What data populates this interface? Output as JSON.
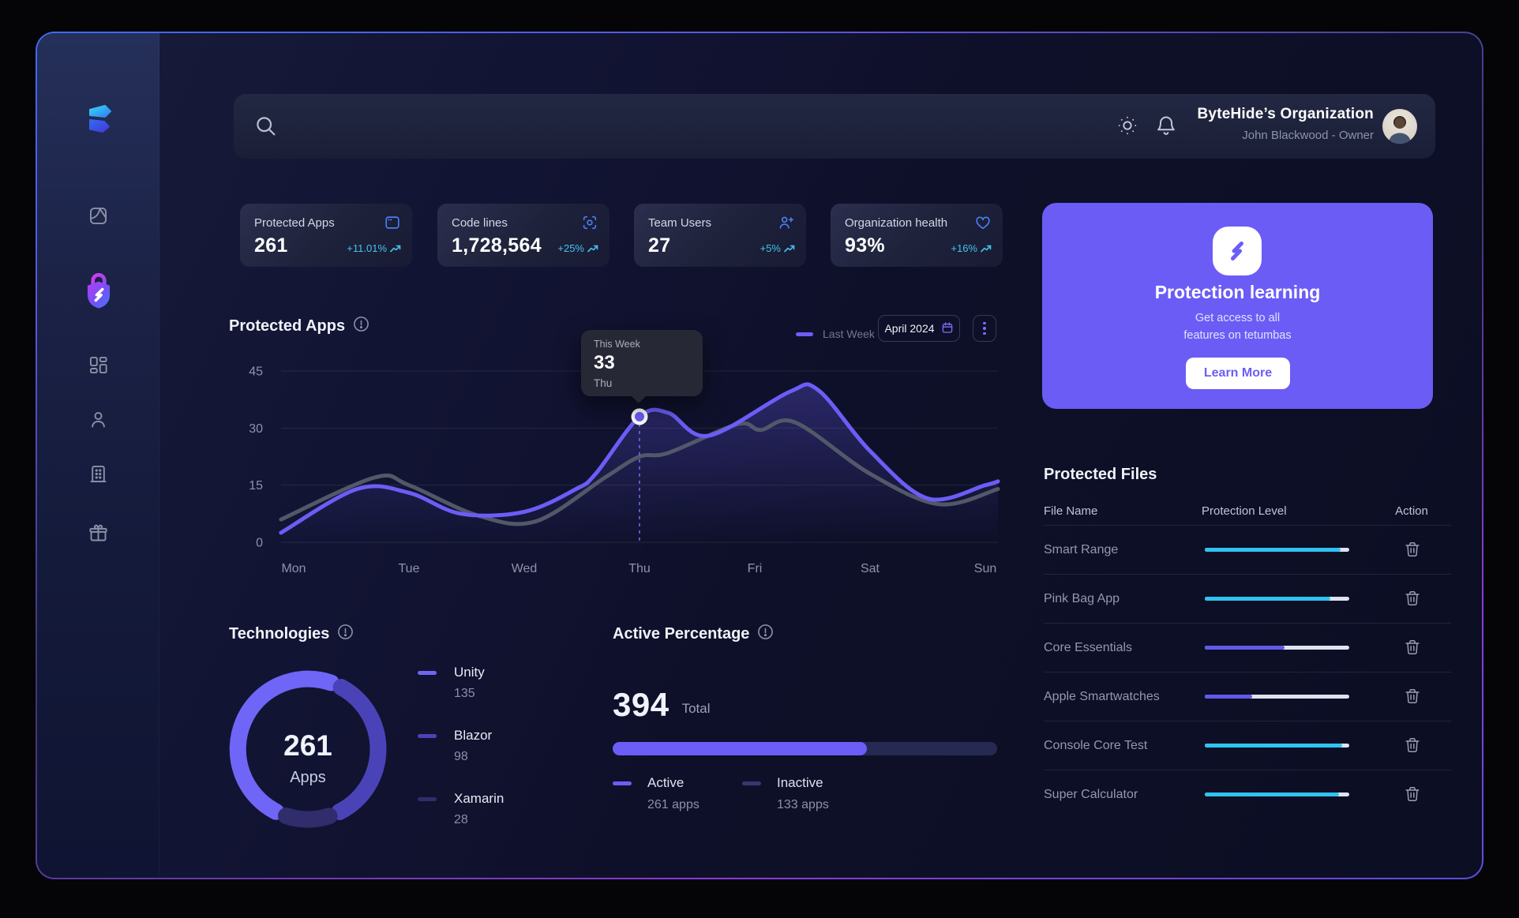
{
  "header": {
    "org_name": "ByteHide’s Organization",
    "org_role": "John Blackwood - Owner",
    "search_placeholder": ""
  },
  "sidebar": {
    "items": [
      "reader",
      "shield",
      "dashboard",
      "user",
      "organization",
      "rewards"
    ]
  },
  "stats": [
    {
      "label": "Protected Apps",
      "value": "261",
      "change": "+11.01%",
      "icon": "app-window-icon"
    },
    {
      "label": "Code lines",
      "value": "1,728,564",
      "change": "+25%",
      "icon": "code-scan-icon"
    },
    {
      "label": "Team Users",
      "value": "27",
      "change": "+5%",
      "icon": "user-plus-icon"
    },
    {
      "label": "Organization health",
      "value": "93%",
      "change": "+16%",
      "icon": "heart-icon"
    }
  ],
  "chart": {
    "title": "Protected Apps",
    "legend_label": "Last Week",
    "period": "April 2024",
    "tooltip": {
      "label": "This Week",
      "value": "33",
      "day": "Thu"
    }
  },
  "promo": {
    "title": "Protection learning",
    "subtitle_line1": "Get access to all",
    "subtitle_line2": "features on tetumbas",
    "button": "Learn More"
  },
  "files": {
    "title": "Protected Files",
    "headers": [
      "File Name",
      "Protection Level",
      "Action"
    ],
    "rows": [
      {
        "name": "Smart Range",
        "level": 94,
        "color": "#2fc3f2"
      },
      {
        "name": "Pink Bag App",
        "level": 87,
        "color": "#2fc3f2"
      },
      {
        "name": "Core Essentials",
        "level": 55,
        "color": "#6159e8"
      },
      {
        "name": "Apple Smartwatches",
        "level": 33,
        "color": "#6159e8"
      },
      {
        "name": "Console Core Test",
        "level": 95,
        "color": "#2fc3f2"
      },
      {
        "name": "Super Calculator",
        "level": 93,
        "color": "#2fc3f2"
      }
    ]
  },
  "technologies": {
    "title": "Technologies",
    "center_value": "261",
    "center_label": "Apps",
    "items": [
      {
        "name": "Unity",
        "value": 135,
        "color": "#6F66F7"
      },
      {
        "name": "Blazor",
        "value": 98,
        "color": "#4A43B8"
      },
      {
        "name": "Xamarin",
        "value": 28,
        "color": "#312C6B"
      }
    ]
  },
  "active": {
    "title": "Active Percentage",
    "total": "394",
    "total_label": "Total",
    "active_count": 261,
    "total_count": 394,
    "legend": [
      {
        "label": "Active",
        "value": "261 apps",
        "color": "#6C5DF6"
      },
      {
        "label": "Inactive",
        "value": "133 apps",
        "color": "#343a6e"
      }
    ]
  },
  "chart_data": [
    {
      "type": "line",
      "title": "Protected Apps",
      "x": [
        "Mon",
        "Tue",
        "Wed",
        "Thu",
        "Fri",
        "Sat",
        "Sun"
      ],
      "ylim": [
        0,
        45
      ],
      "y_ticks": [
        45,
        30,
        15,
        0
      ],
      "grid": true,
      "legend_position": "top-right",
      "series": [
        {
          "name": "Last Week",
          "color": "#535869",
          "values_by_day": [
            6,
            15,
            6,
            23,
            30,
            18,
            13
          ],
          "anchors": [
            [
              -0.11,
              6
            ],
            [
              0.7,
              17
            ],
            [
              1,
              15
            ],
            [
              1.6,
              7
            ],
            [
              2.1,
              5.5
            ],
            [
              2.7,
              17
            ],
            [
              3,
              22.5
            ],
            [
              3.25,
              23.5
            ],
            [
              3.85,
              31
            ],
            [
              4.05,
              29.5
            ],
            [
              4.35,
              31.5
            ],
            [
              5,
              18
            ],
            [
              5.6,
              10
            ],
            [
              6.11,
              14
            ]
          ]
        },
        {
          "name": "This Week",
          "color": "#6C5DF6",
          "area": true,
          "values_by_day": [
            3,
            13,
            8,
            33,
            35,
            24,
            15
          ],
          "anchors": [
            [
              -0.11,
              2.5
            ],
            [
              0.55,
              14
            ],
            [
              1,
              13
            ],
            [
              1.45,
              7.5
            ],
            [
              2,
              8
            ],
            [
              2.45,
              14
            ],
            [
              2.62,
              18
            ],
            [
              3,
              33
            ],
            [
              3.25,
              34
            ],
            [
              3.6,
              28
            ],
            [
              4.3,
              39.5
            ],
            [
              4.55,
              40
            ],
            [
              5,
              24
            ],
            [
              5.5,
              11.5
            ],
            [
              6,
              15
            ],
            [
              6.11,
              16
            ]
          ]
        }
      ],
      "highlight": {
        "day_index": 3,
        "value": 33,
        "label": "Thu"
      }
    },
    {
      "type": "pie",
      "donut": true,
      "title": "Technologies",
      "labels": [
        "Unity",
        "Blazor",
        "Xamarin"
      ],
      "values": [
        135,
        98,
        28
      ],
      "total": 261
    },
    {
      "type": "bar",
      "title": "Active Percentage",
      "total": 394,
      "active": 261,
      "inactive": 133
    }
  ]
}
